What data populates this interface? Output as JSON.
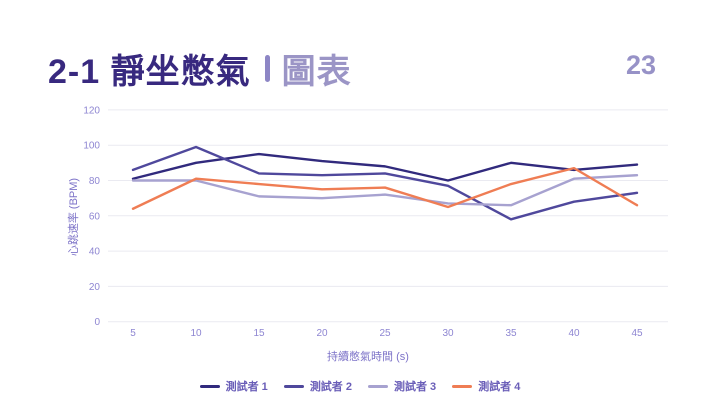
{
  "slide": {
    "title_dark": "2-1 靜坐憋氣",
    "title_light": "圖表",
    "page_number": "23"
  },
  "colors": {
    "background": "#ffffff",
    "title_primary": "#38297f",
    "title_secondary": "#9b95c6",
    "divider": "#8d86c5",
    "page_number": "#9792c7",
    "tick_text": "#8e86d2",
    "axis_title_text": "#7d73c8",
    "legend_text": "#6a5eb8",
    "gridline": "#eaeaf1"
  },
  "chart_data": {
    "type": "line",
    "x": [
      5,
      10,
      15,
      20,
      25,
      30,
      35,
      40,
      45
    ],
    "xlabel": "持續憋氣時間 (s)",
    "ylabel": "心跳速率 (BPM)",
    "ylim": [
      0,
      120
    ],
    "yticks": [
      0,
      20,
      40,
      60,
      80,
      100,
      120
    ],
    "grid": true,
    "legend_position": "bottom",
    "series": [
      {
        "name": "測試者 1",
        "color": "#312a7d",
        "values": [
          81,
          90,
          95,
          91,
          88,
          80,
          90,
          86,
          89
        ]
      },
      {
        "name": "測試者 2",
        "color": "#4f489c",
        "values": [
          86,
          99,
          84,
          83,
          84,
          77,
          58,
          68,
          73
        ]
      },
      {
        "name": "測試者 3",
        "color": "#a7a2d0",
        "values": [
          80,
          80,
          71,
          70,
          72,
          67,
          66,
          81,
          83
        ]
      },
      {
        "name": "測試者 4",
        "color": "#ef7d54",
        "values": [
          64,
          81,
          78,
          75,
          76,
          65,
          78,
          87,
          66
        ]
      }
    ]
  }
}
